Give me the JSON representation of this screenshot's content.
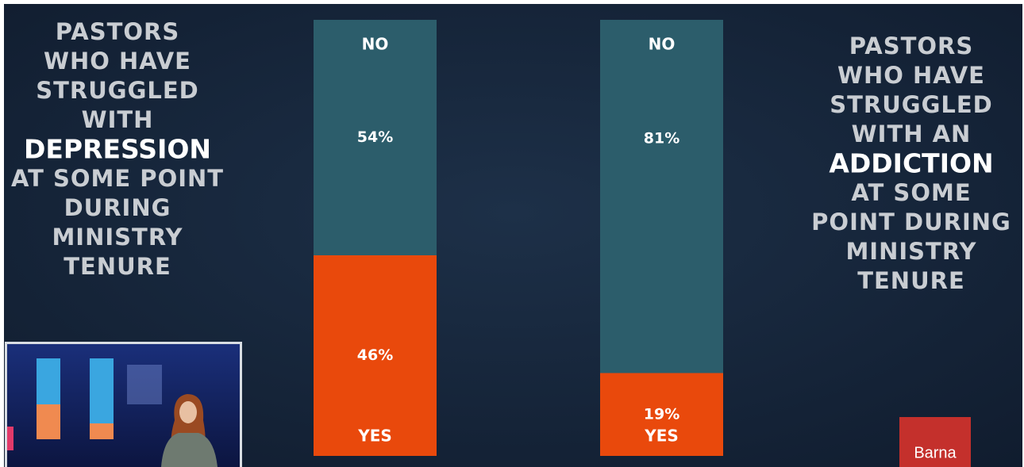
{
  "chart_data": [
    {
      "type": "bar",
      "stacked": true,
      "title": [
        "PASTORS",
        "WHO HAVE",
        "STRUGGLED",
        "WITH",
        "DEPRESSION",
        "AT SOME POINT",
        "DURING",
        "MINISTRY",
        "TENURE"
      ],
      "emphasis_line": 4,
      "ylim": [
        0,
        100
      ],
      "series": [
        {
          "name": "NO",
          "color": "#2c5d6b",
          "values": [
            54
          ],
          "value_labels": [
            "54%"
          ]
        },
        {
          "name": "YES",
          "color": "#e9490c",
          "values": [
            46
          ],
          "value_labels": [
            "46%"
          ]
        }
      ]
    },
    {
      "type": "bar",
      "stacked": true,
      "title": [
        "PASTORS",
        "WHO HAVE",
        "STRUGGLED",
        "WITH AN",
        "ADDICTION",
        "AT SOME",
        "POINT DURING",
        "MINISTRY",
        "TENURE"
      ],
      "emphasis_line": 4,
      "ylim": [
        0,
        100
      ],
      "series": [
        {
          "name": "NO",
          "color": "#2c5d6b",
          "values": [
            81
          ],
          "value_labels": [
            "81%"
          ]
        },
        {
          "name": "YES",
          "color": "#e9490c",
          "values": [
            19
          ],
          "value_labels": [
            "19%"
          ]
        }
      ]
    }
  ],
  "logo": "Barna"
}
